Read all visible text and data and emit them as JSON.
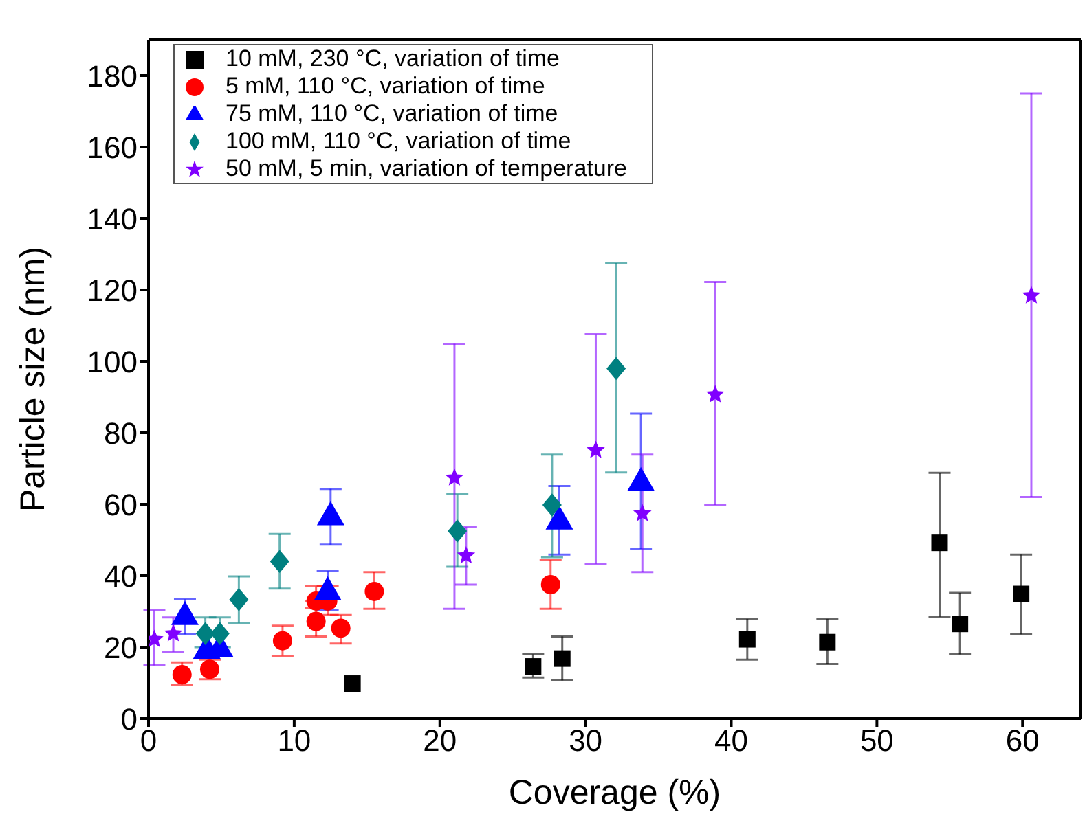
{
  "chart_data": {
    "type": "scatter",
    "xlabel": "Coverage (%)",
    "ylabel": "Particle size (nm)",
    "xlim": [
      0,
      64
    ],
    "ylim": [
      0,
      190
    ],
    "xticks": [
      0,
      10,
      20,
      30,
      40,
      50,
      60
    ],
    "yticks": [
      0,
      20,
      40,
      60,
      80,
      100,
      120,
      140,
      160,
      180
    ],
    "grid": false,
    "legend": "top left",
    "series": [
      {
        "name": "10 mM, 230 °C, variation of time",
        "color": "#000000",
        "marker": "square",
        "x": [
          14.0,
          26.4,
          28.4,
          41.1,
          46.6,
          54.3,
          55.7,
          59.9
        ],
        "values": [
          9.8,
          14.6,
          16.8,
          22.2,
          21.4,
          49.2,
          26.5,
          34.9
        ],
        "errors": [
          null,
          [
            11.5,
            18.0
          ],
          [
            10.7,
            23.0
          ],
          [
            16.5,
            27.9
          ],
          [
            15.3,
            27.9
          ],
          [
            28.5,
            68.8
          ],
          [
            18.0,
            35.2
          ],
          [
            23.6,
            45.9
          ]
        ]
      },
      {
        "name": "5 mM, 110 °C, variation of time",
        "color": "#ff0000",
        "marker": "circle",
        "x": [
          2.3,
          4.2,
          9.2,
          11.5,
          11.5,
          12.3,
          13.2,
          15.5,
          27.6
        ],
        "values": [
          12.3,
          13.8,
          21.8,
          27.2,
          32.9,
          32.9,
          25.3,
          35.6,
          37.5
        ],
        "errors": [
          [
            9.5,
            15.7
          ],
          [
            11.0,
            16.5
          ],
          [
            17.6,
            26.0
          ],
          [
            23.0,
            31.0
          ],
          [
            32.9,
            37.0
          ],
          [
            29.0,
            37.0
          ],
          [
            21.0,
            29.0
          ],
          [
            30.7,
            41.0
          ],
          [
            30.7,
            44.4
          ]
        ]
      },
      {
        "name": "75 mM, 110 °C, variation of time",
        "color": "#0000ff",
        "marker": "triangle",
        "x": [
          2.5,
          4.0,
          4.9,
          12.5,
          12.3,
          28.2,
          33.8
        ],
        "values": [
          29.1,
          19.6,
          20.0,
          57.0,
          36.0,
          55.8,
          66.6
        ],
        "errors": [
          [
            23.6,
            33.4
          ],
          null,
          null,
          [
            48.7,
            64.3
          ],
          [
            30.3,
            41.3
          ],
          [
            45.9,
            65.1
          ],
          [
            47.5,
            85.4
          ]
        ]
      },
      {
        "name": "100 mM, 110 °C, variation of time",
        "color": "#008080",
        "marker": "diamond",
        "x": [
          3.9,
          4.9,
          6.2,
          9.0,
          21.2,
          27.7,
          32.1
        ],
        "values": [
          23.8,
          23.8,
          33.3,
          44.0,
          52.5,
          59.8,
          98.0
        ],
        "errors": [
          [
            20.0,
            28.3
          ],
          [
            20.0,
            28.3
          ],
          [
            26.8,
            39.8
          ],
          [
            36.4,
            51.7
          ],
          [
            42.5,
            62.8
          ],
          [
            45.2,
            73.9
          ],
          [
            68.9,
            127.5
          ]
        ]
      },
      {
        "name": "50 mM, 5 min, variation of temperature",
        "color": "#8000ff",
        "marker": "star",
        "x": [
          0.4,
          1.7,
          21.0,
          21.8,
          30.7,
          33.9,
          38.9,
          60.6
        ],
        "values": [
          22.2,
          23.8,
          67.4,
          45.6,
          75.1,
          57.4,
          90.7,
          118.4
        ],
        "errors": [
          [
            14.9,
            30.3
          ],
          [
            18.7,
            28.3
          ],
          [
            30.7,
            104.9
          ],
          [
            37.5,
            53.6
          ],
          [
            43.3,
            107.6
          ],
          [
            41.0,
            73.9
          ],
          [
            59.8,
            122.2
          ],
          [
            62.0,
            175.0
          ]
        ]
      }
    ]
  }
}
